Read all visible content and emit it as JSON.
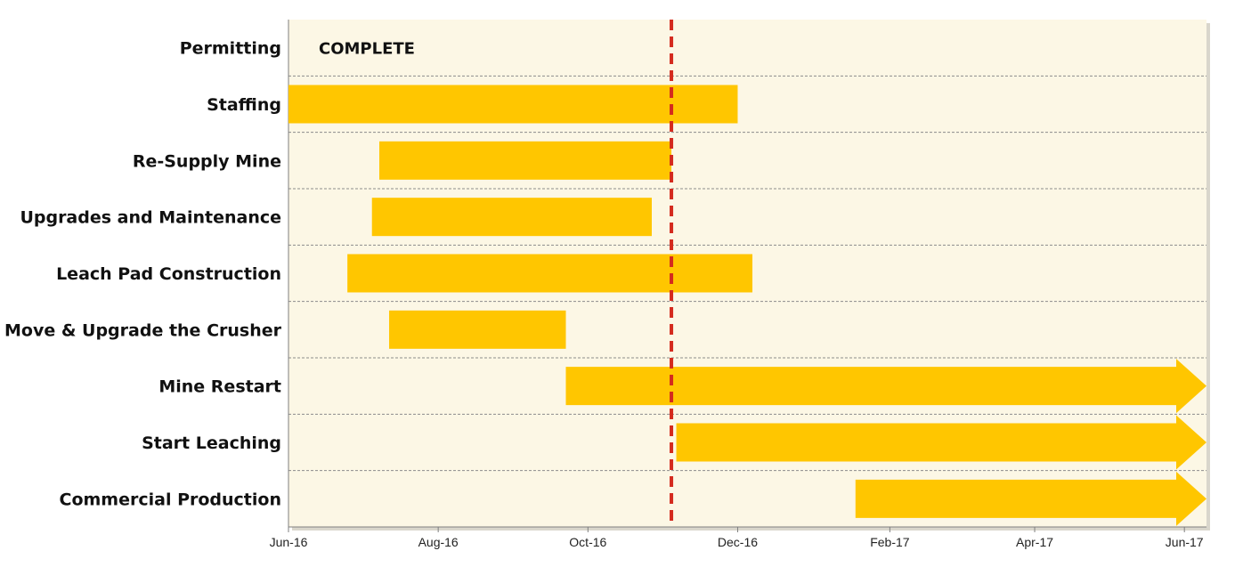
{
  "chart_data": {
    "type": "gantt",
    "title": "",
    "tasks": [
      {
        "name": "Permitting",
        "start": null,
        "end": null,
        "status_text": "COMPLETE",
        "ongoing": false
      },
      {
        "name": "Staffing",
        "start": "2016-06-01",
        "end": "2016-12-01",
        "ongoing": false
      },
      {
        "name": "Re-Supply Mine",
        "start": "2016-07-08",
        "end": "2016-11-04",
        "ongoing": false
      },
      {
        "name": "Upgrades and Maintenance",
        "start": "2016-07-05",
        "end": "2016-10-27",
        "ongoing": false
      },
      {
        "name": "Leach Pad Construction",
        "start": "2016-06-25",
        "end": "2016-12-07",
        "ongoing": false
      },
      {
        "name": "Move & Upgrade  the Crusher",
        "start": "2016-07-12",
        "end": "2016-09-22",
        "ongoing": false
      },
      {
        "name": "Mine Restart",
        "start": "2016-09-22",
        "end": "2017-06-10",
        "ongoing": true
      },
      {
        "name": "Start Leaching",
        "start": "2016-11-06",
        "end": "2017-06-10",
        "ongoing": true
      },
      {
        "name": "Commercial Production",
        "start": "2017-01-18",
        "end": "2017-06-10",
        "ongoing": true
      }
    ],
    "x_ticks": [
      {
        "date": "2016-06-01",
        "label": "Jun-16"
      },
      {
        "date": "2016-08-01",
        "label": "Aug-16"
      },
      {
        "date": "2016-10-01",
        "label": "Oct-16"
      },
      {
        "date": "2016-12-01",
        "label": "Dec-16"
      },
      {
        "date": "2017-02-01",
        "label": "Feb-17"
      },
      {
        "date": "2017-04-01",
        "label": "Apr-17"
      },
      {
        "date": "2017-06-01",
        "label": "Jun-17"
      }
    ],
    "xlim": [
      "2016-06-01",
      "2017-06-10"
    ],
    "current_date_marker": "2016-11-04",
    "grid": "horizontal dashed",
    "colors": {
      "bar": "#FFC600",
      "plot_background": "#FCF7E5",
      "marker": "#D42A1E",
      "grid": "#8C8C8C"
    }
  }
}
